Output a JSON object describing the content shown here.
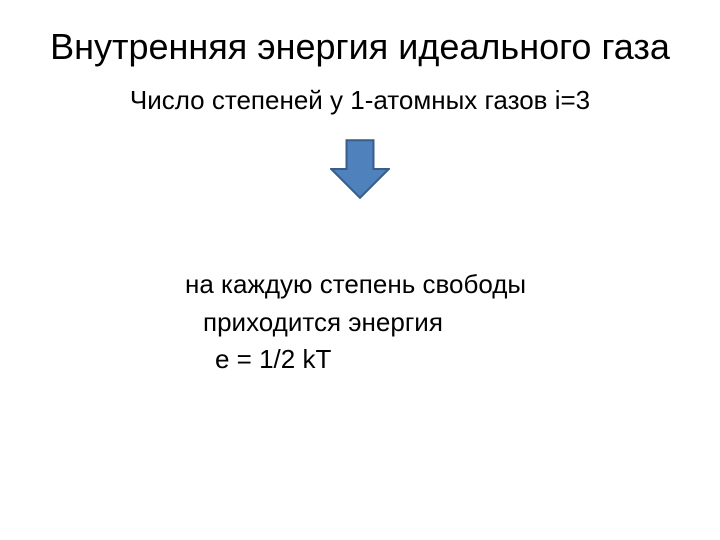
{
  "slide": {
    "title": "Внутренняя энергия идеального газа",
    "subtitle": "Число степеней у 1-атомных газов i=3",
    "arrow": {
      "fill": "#4f81bd",
      "stroke": "#385d8a",
      "stroke_width": 2,
      "width": 60,
      "height": 62,
      "shaft_width_ratio": 0.45,
      "head_start_ratio": 0.5
    },
    "body": {
      "line1": "на каждую степень свободы",
      "line2": "приходится  энергия",
      "line3": "е = 1/2 kT"
    },
    "typography": {
      "title_fontsize": 36,
      "body_fontsize": 26,
      "font_family": "Arial"
    },
    "colors": {
      "background": "#ffffff",
      "text": "#000000"
    }
  }
}
